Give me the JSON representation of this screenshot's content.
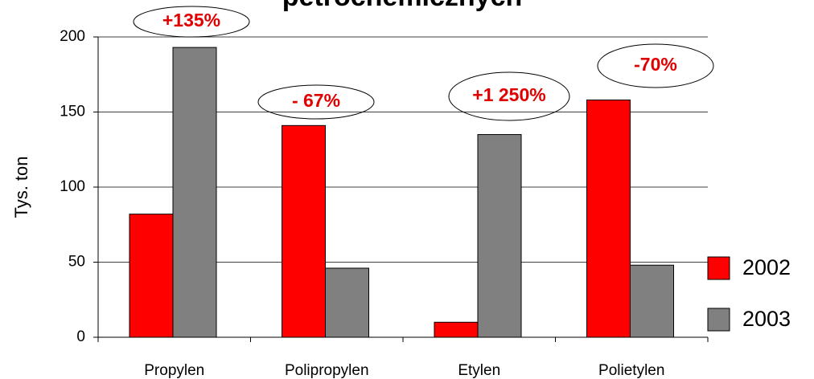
{
  "chart_data": {
    "type": "bar",
    "title": "petrochemicznych",
    "categories": [
      "Propylen",
      "Polipropylen",
      "Etylen",
      "Polietylen"
    ],
    "series": [
      {
        "name": "2002",
        "color": "#ff0000",
        "values": [
          82,
          141,
          10,
          158
        ]
      },
      {
        "name": "2003",
        "color": "#808080",
        "values": [
          193,
          46,
          135,
          48
        ]
      }
    ],
    "ylabel": "Tys. ton",
    "ylim": [
      0,
      200
    ],
    "yticks": [
      0,
      50,
      100,
      150,
      200
    ],
    "grid": true,
    "legend": "right",
    "annotations": [
      "+135%",
      "- 67%",
      "+1 250%",
      "-70%"
    ]
  }
}
